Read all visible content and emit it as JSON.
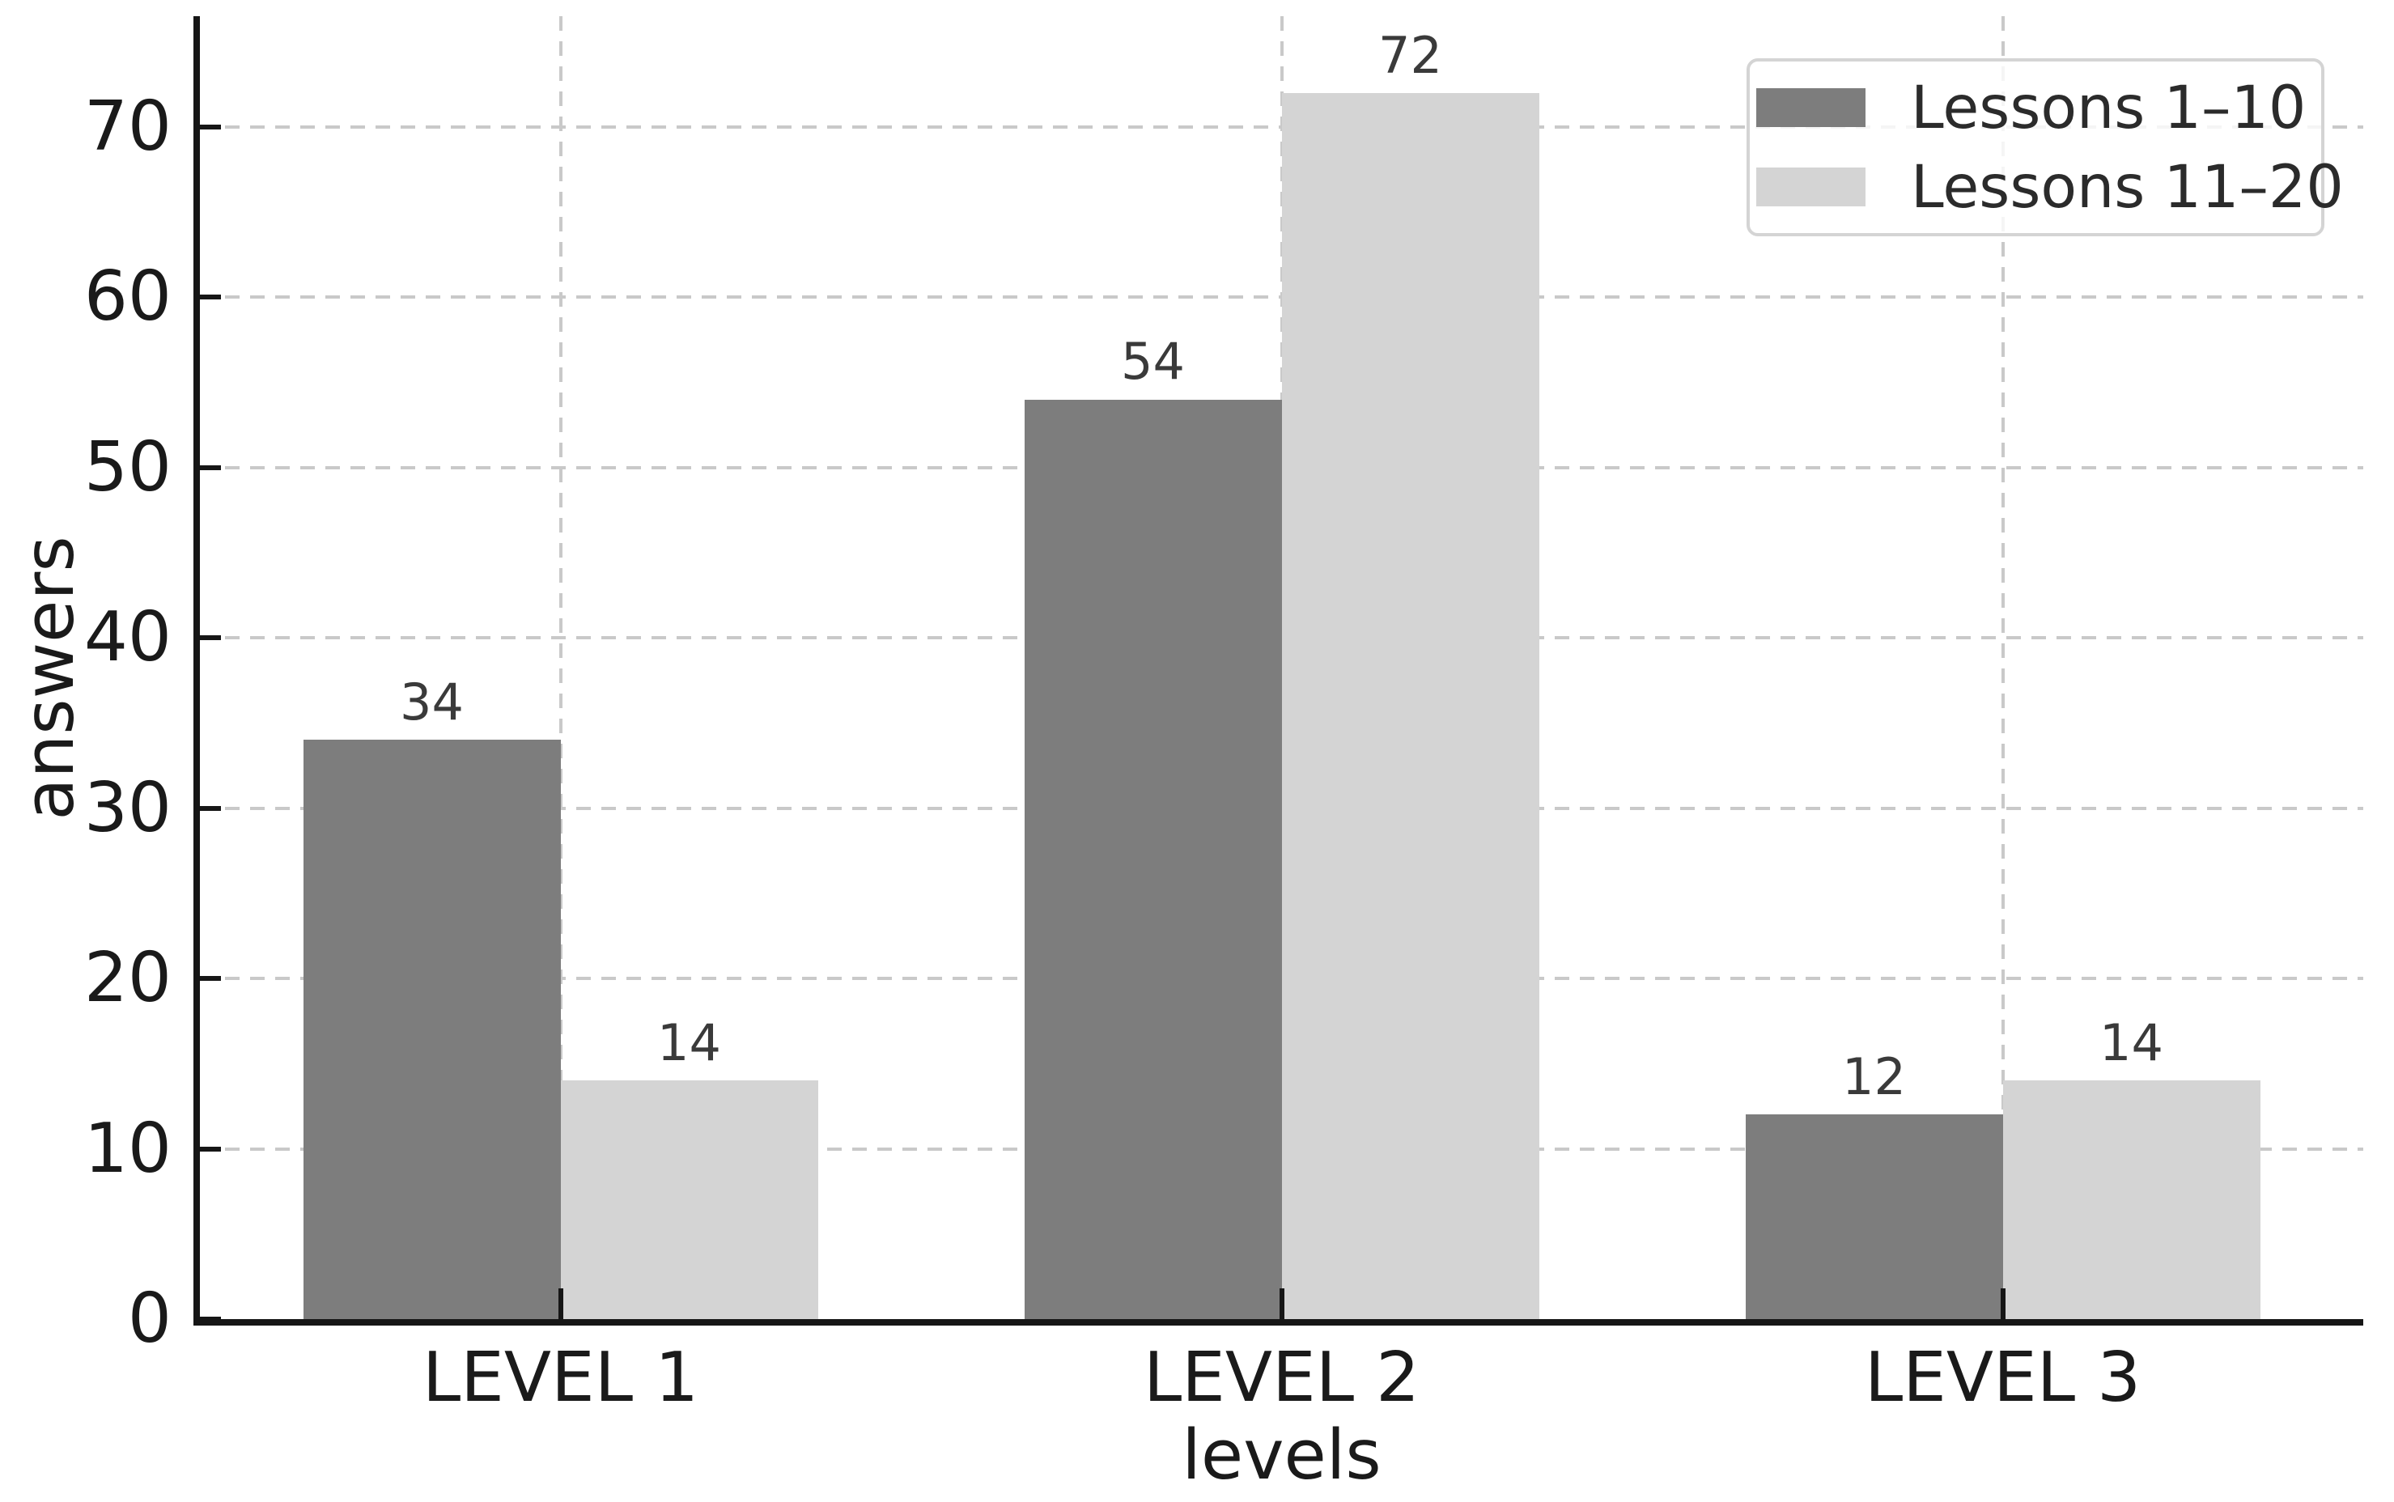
{
  "chart_data": {
    "type": "bar",
    "title": "",
    "categories": [
      "LEVEL 1",
      "LEVEL 2",
      "LEVEL 3"
    ],
    "series": [
      {
        "name": "Lessons 1–10",
        "values": [
          34,
          54,
          12
        ],
        "color": "#7d7d7d"
      },
      {
        "name": "Lessons 11–20",
        "values": [
          14,
          72,
          14
        ],
        "color": "#d4d4d4"
      }
    ],
    "xlabel": "levels",
    "ylabel": "answers",
    "yticks": [
      0,
      10,
      20,
      30,
      40,
      50,
      60,
      70
    ],
    "ylim": [
      0,
      76.5
    ],
    "grid": "dashed light-gray; horizontal at every y tick, vertical at every category center",
    "tick_direction": "in",
    "legend_position": "upper right",
    "bar_value_labels": true
  },
  "colors": {
    "background": "#ffffff",
    "axis_spine": "#161616",
    "gridline": "#c9c9c9",
    "tick_label": "#1a1a1a",
    "value_label": "#3a3a3a",
    "legend_border": "#d4d4d4",
    "legend_text": "#2b2b2b",
    "series_dark": "#7d7d7d",
    "series_light": "#d4d4d4"
  }
}
